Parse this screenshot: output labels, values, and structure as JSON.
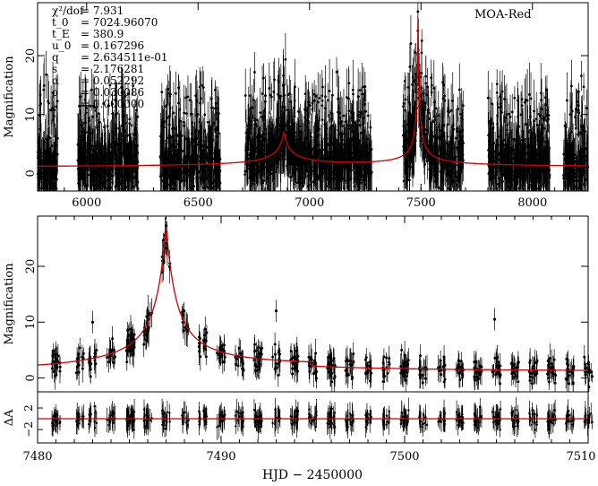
{
  "chart_data": [
    {
      "id": "top",
      "type": "scatter",
      "xlim": [
        5780,
        8250
      ],
      "ylim": [
        -3,
        29
      ],
      "ylabel": "Magnification",
      "xticks": [
        6000,
        6500,
        7000,
        7500,
        8000
      ],
      "yticks": [
        0,
        10,
        20
      ],
      "legend": "MOA-Red",
      "season_windows": [
        [
          5780,
          5870
        ],
        [
          5960,
          6230
        ],
        [
          6330,
          6600
        ],
        [
          6710,
          7280
        ],
        [
          7420,
          7690
        ],
        [
          7800,
          8080
        ],
        [
          8140,
          8250
        ]
      ],
      "model": {
        "baseline": 1.0,
        "peaks": [
          {
            "t": 6885,
            "amp": 5.8,
            "width": 45
          },
          {
            "t": 7487,
            "amp": 25.5,
            "width": 8
          }
        ]
      },
      "parameters": [
        {
          "label": "χ²/dof",
          "value": "= 7.931"
        },
        {
          "label": "t_0",
          "value": "= 7024.96070"
        },
        {
          "label": "t_E",
          "value": "= 380.9"
        },
        {
          "label": "u_0",
          "value": "= 0.167296"
        },
        {
          "label": "q",
          "value": "= 2.634511e-01"
        },
        {
          "label": "s",
          "value": "= 2.176281"
        },
        {
          "label": "α",
          "value": "= 0.052292"
        },
        {
          "label": "ρ",
          "value": "= 0.030086"
        },
        {
          "label": "",
          "value": "= 0.000000"
        }
      ]
    },
    {
      "id": "bottom",
      "type": "scatter",
      "xlim": [
        7480,
        7510
      ],
      "ylim": [
        -2.5,
        29
      ],
      "ylabel": "Magnification",
      "xticks": [
        7480,
        7490,
        7500,
        7510
      ],
      "xticklabels": [
        "7480",
        "7490",
        "7500",
        "7510"
      ],
      "yticks": [
        0,
        10,
        20
      ],
      "nights": [
        7481.0,
        7485.1,
        7489.0,
        7490.0,
        7491.0,
        7492.0,
        7493.0,
        7494.0,
        7495.0,
        7496.0,
        7497.0,
        7498.0,
        7499.0,
        7500.0,
        7501.0,
        7502.0,
        7503.0,
        7504.0,
        7505.0,
        7506.0,
        7507.0,
        7508.0,
        7509.0,
        7510.0,
        7482.3,
        7483.0,
        7484.0,
        7485.0,
        7486.0,
        7487.0,
        7488.0
      ],
      "model": {
        "baseline": 1.0,
        "peak_t": 7487.0,
        "peak_amp": 25.5,
        "slope_per_day": 0.05
      }
    },
    {
      "id": "residual",
      "type": "scatter",
      "xlim": [
        7480,
        7510
      ],
      "ylim": [
        -4.5,
        5
      ],
      "ylabel": "ΔA",
      "xlabel": "HJD − 2450000",
      "yticks": [
        -2,
        2
      ],
      "model_value": 0
    }
  ]
}
